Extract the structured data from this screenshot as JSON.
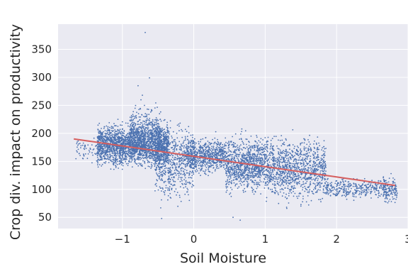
{
  "chart_data": {
    "type": "scatter",
    "title": "",
    "xlabel": "Soil Moisture",
    "ylabel": "Crop div. impact on productivity",
    "xlim": [
      -1.9,
      3.0
    ],
    "ylim": [
      30,
      395
    ],
    "xticks": [
      -1,
      0,
      1,
      2,
      3
    ],
    "xtick_labels": [
      "−1",
      "0",
      "1",
      "2",
      "3"
    ],
    "yticks": [
      50,
      100,
      150,
      200,
      250,
      300,
      350
    ],
    "ytick_labels": [
      "50",
      "100",
      "150",
      "200",
      "250",
      "300",
      "350"
    ],
    "grid": true,
    "background": "#eaeaf2",
    "point_color": "#4c72b0",
    "fit_line_color": "#d65f5f",
    "fit_line": {
      "x": [
        -1.68,
        2.82
      ],
      "y": [
        190,
        107
      ]
    },
    "clusters": [
      {
        "x_range": [
          -1.35,
          -0.35
        ],
        "y_center": 178,
        "y_spread": 16,
        "count": 2200
      },
      {
        "x_range": [
          -0.9,
          -0.45
        ],
        "y_center": 200,
        "y_spread": 20,
        "count": 500
      },
      {
        "x_range": [
          -0.55,
          0.0
        ],
        "y_center": 150,
        "y_spread": 30,
        "count": 600
      },
      {
        "x_range": [
          -0.1,
          0.45
        ],
        "y_center": 160,
        "y_spread": 14,
        "count": 700
      },
      {
        "x_range": [
          0.45,
          1.0
        ],
        "y_center": 145,
        "y_spread": 22,
        "count": 900
      },
      {
        "x_range": [
          1.0,
          1.85
        ],
        "y_center": 138,
        "y_spread": 25,
        "count": 1100
      },
      {
        "x_range": [
          1.85,
          2.7
        ],
        "y_center": 102,
        "y_spread": 8,
        "count": 350
      },
      {
        "x_range": [
          2.65,
          2.85
        ],
        "y_center": 100,
        "y_spread": 12,
        "count": 120
      },
      {
        "x_range": [
          -1.65,
          -1.3
        ],
        "y_center": 170,
        "y_spread": 10,
        "count": 60
      }
    ],
    "outliers": [
      {
        "x": -0.68,
        "y": 380
      },
      {
        "x": -0.62,
        "y": 299
      },
      {
        "x": -0.78,
        "y": 285
      },
      {
        "x": -0.72,
        "y": 268
      },
      {
        "x": 0.55,
        "y": 50
      },
      {
        "x": 0.65,
        "y": 45
      },
      {
        "x": -0.45,
        "y": 48
      },
      {
        "x": 1.3,
        "y": 68
      },
      {
        "x": 1.5,
        "y": 70
      }
    ]
  }
}
